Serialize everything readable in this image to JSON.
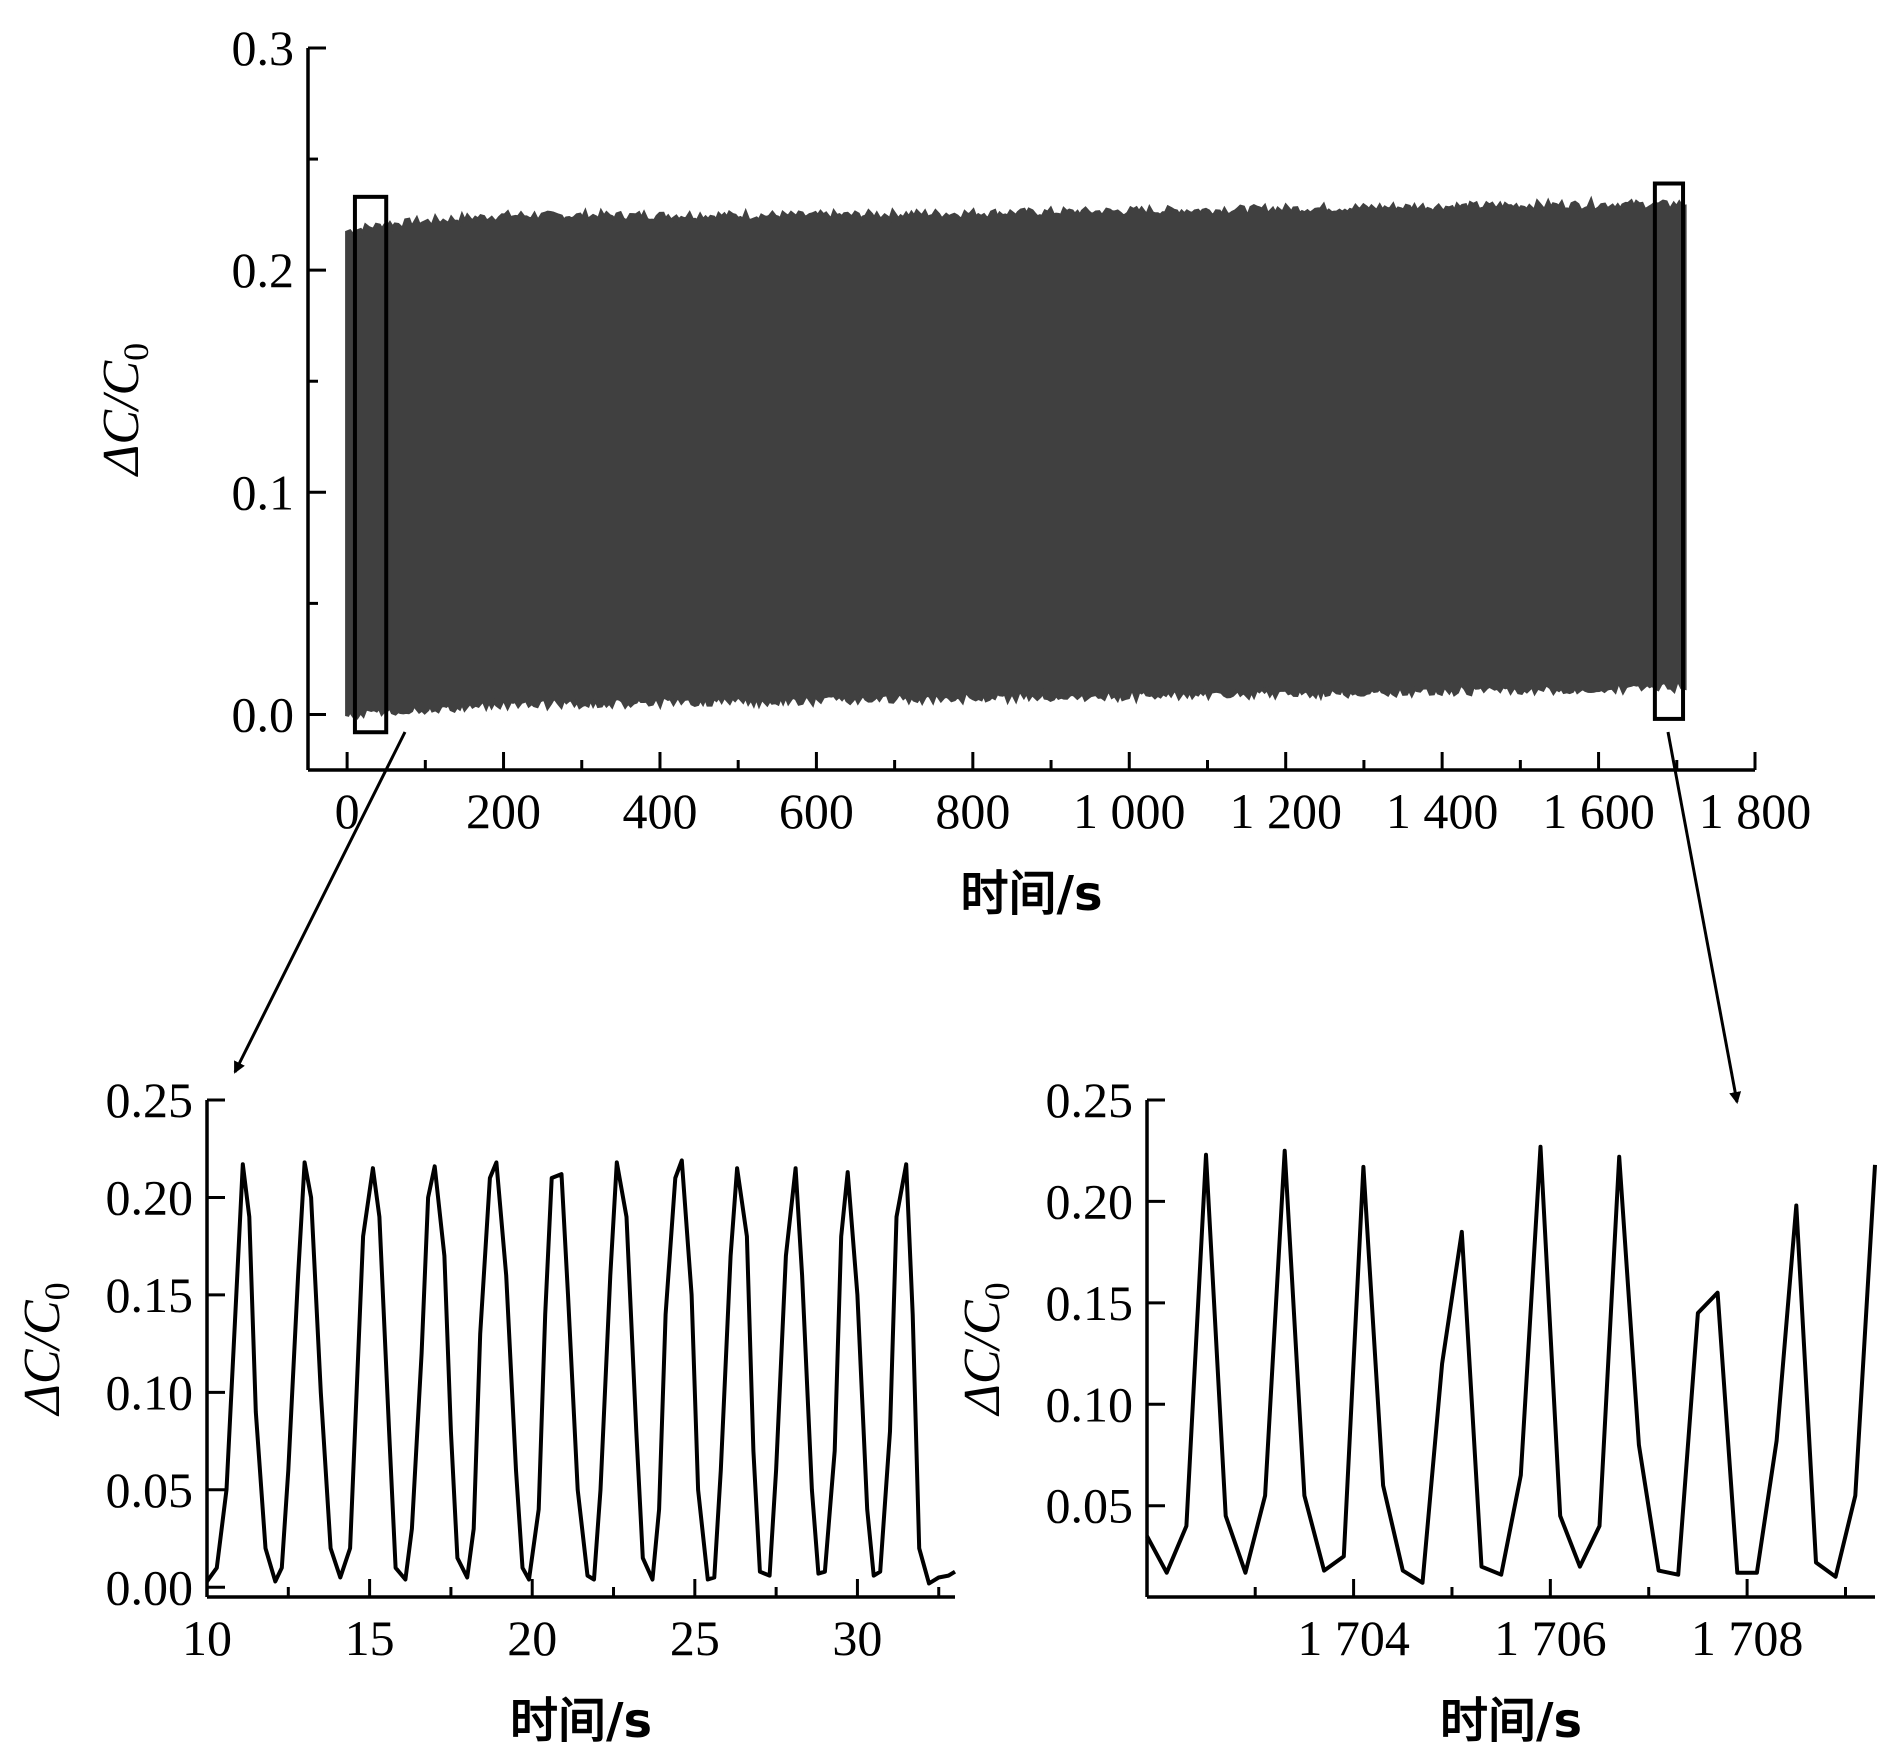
{
  "chart_data": [
    {
      "type": "line",
      "title": "",
      "xlabel": "时间/s",
      "ylabel_main": "ΔC/C",
      "ylabel_sub": "0",
      "xlim": [
        -50,
        1800
      ],
      "ylim": [
        -0.025,
        0.3
      ],
      "x_ticks": [
        0,
        200,
        400,
        600,
        800,
        1000,
        1200,
        1400,
        1600,
        1800
      ],
      "x_tick_labels": [
        "0",
        "200",
        "400",
        "600",
        "800",
        "1 000",
        "1 200",
        "1 400",
        "1 600",
        "1 800"
      ],
      "y_ticks": [
        0.0,
        0.1,
        0.2,
        0.3
      ],
      "y_tick_labels": [
        "0.0",
        "0.1",
        "0.2",
        "0.3"
      ],
      "series": [
        {
          "color": "#404040",
          "x_range": [
            0,
            1710
          ],
          "upper_envelope": [
            [
              0,
              0.217
            ],
            [
              50,
              0.22
            ],
            [
              200,
              0.224
            ],
            [
              400,
              0.224
            ],
            [
              600,
              0.224
            ],
            [
              800,
              0.225
            ],
            [
              1000,
              0.226
            ],
            [
              1200,
              0.227
            ],
            [
              1400,
              0.228
            ],
            [
              1600,
              0.229
            ],
            [
              1710,
              0.229
            ]
          ],
          "lower_envelope": [
            [
              0,
              0.0
            ],
            [
              50,
              0.002
            ],
            [
              200,
              0.005
            ],
            [
              400,
              0.006
            ],
            [
              600,
              0.007
            ],
            [
              800,
              0.008
            ],
            [
              1000,
              0.009
            ],
            [
              1200,
              0.01
            ],
            [
              1400,
              0.011
            ],
            [
              1600,
              0.012
            ],
            [
              1710,
              0.013
            ]
          ]
        }
      ],
      "highlight_boxes": [
        {
          "x_range": [
            10,
            50
          ],
          "y_range": [
            -0.008,
            0.233
          ]
        },
        {
          "x_range": [
            1672,
            1708
          ],
          "y_range": [
            -0.002,
            0.239
          ]
        }
      ]
    },
    {
      "type": "line",
      "title": "",
      "xlabel": "时间/s",
      "ylabel_main": "ΔC/C",
      "ylabel_sub": "0",
      "xlim": [
        10,
        33
      ],
      "ylim": [
        -0.005,
        0.25
      ],
      "x_ticks": [
        10,
        15,
        20,
        25,
        30
      ],
      "x_tick_labels": [
        "10",
        "15",
        "20",
        "25",
        "30"
      ],
      "y_ticks": [
        0.0,
        0.05,
        0.1,
        0.15,
        0.2,
        0.25
      ],
      "y_tick_labels": [
        "0.00",
        "0.05",
        "0.10",
        "0.15",
        "0.20",
        "0.25"
      ],
      "series": [
        {
          "color": "#000000",
          "x": [
            10.0,
            10.3,
            10.6,
            10.9,
            11.1,
            11.3,
            11.5,
            11.8,
            12.1,
            12.3,
            12.5,
            12.8,
            13.0,
            13.2,
            13.5,
            13.8,
            14.1,
            14.4,
            14.6,
            14.8,
            15.1,
            15.3,
            15.6,
            15.8,
            16.1,
            16.3,
            16.6,
            16.8,
            17.0,
            17.3,
            17.5,
            17.7,
            18.0,
            18.2,
            18.4,
            18.7,
            18.9,
            19.2,
            19.5,
            19.7,
            19.9,
            20.2,
            20.4,
            20.6,
            20.9,
            21.1,
            21.4,
            21.7,
            21.9,
            22.1,
            22.4,
            22.6,
            22.9,
            23.2,
            23.4,
            23.7,
            23.9,
            24.1,
            24.4,
            24.6,
            24.9,
            25.1,
            25.4,
            25.6,
            25.8,
            26.1,
            26.3,
            26.6,
            26.8,
            27.0,
            27.3,
            27.5,
            27.8,
            28.1,
            28.3,
            28.6,
            28.8,
            29.0,
            29.3,
            29.5,
            29.7,
            30.0,
            30.3,
            30.5,
            30.7,
            31.0,
            31.2,
            31.5,
            31.7,
            31.9,
            32.2,
            32.5,
            32.8,
            33.0
          ],
          "y": [
            0.003,
            0.01,
            0.05,
            0.15,
            0.217,
            0.19,
            0.09,
            0.02,
            0.003,
            0.01,
            0.06,
            0.16,
            0.218,
            0.2,
            0.1,
            0.02,
            0.005,
            0.02,
            0.1,
            0.18,
            0.215,
            0.19,
            0.08,
            0.01,
            0.004,
            0.03,
            0.12,
            0.2,
            0.216,
            0.17,
            0.08,
            0.015,
            0.005,
            0.03,
            0.13,
            0.21,
            0.218,
            0.16,
            0.06,
            0.01,
            0.004,
            0.04,
            0.14,
            0.21,
            0.212,
            0.15,
            0.05,
            0.006,
            0.004,
            0.05,
            0.16,
            0.218,
            0.19,
            0.08,
            0.015,
            0.004,
            0.04,
            0.14,
            0.21,
            0.219,
            0.15,
            0.05,
            0.004,
            0.005,
            0.06,
            0.17,
            0.215,
            0.18,
            0.07,
            0.008,
            0.006,
            0.06,
            0.17,
            0.215,
            0.16,
            0.05,
            0.007,
            0.008,
            0.07,
            0.18,
            0.213,
            0.15,
            0.04,
            0.006,
            0.008,
            0.08,
            0.19,
            0.217,
            0.14,
            0.02,
            0.002,
            0.005,
            0.006,
            0.008
          ]
        }
      ]
    },
    {
      "type": "line",
      "title": "",
      "xlabel": "时间/s",
      "ylabel_main": "ΔC/C",
      "ylabel_sub": "0",
      "xlim": [
        1701.9,
        1709.3
      ],
      "ylim": [
        0.005,
        0.25
      ],
      "x_ticks": [
        1704,
        1706,
        1708
      ],
      "x_tick_labels": [
        "1 704",
        "1 706",
        "1 708"
      ],
      "y_ticks": [
        0.05,
        0.1,
        0.15,
        0.2,
        0.25
      ],
      "y_tick_labels": [
        "0.05",
        "0.10",
        "0.15",
        "0.20",
        "0.25"
      ],
      "series": [
        {
          "color": "#000000",
          "x": [
            1701.9,
            1702.1,
            1702.3,
            1702.5,
            1702.7,
            1702.9,
            1703.1,
            1703.3,
            1703.5,
            1703.7,
            1703.9,
            1704.1,
            1704.3,
            1704.5,
            1704.7,
            1704.9,
            1705.1,
            1705.3,
            1705.5,
            1705.7,
            1705.9,
            1706.1,
            1706.3,
            1706.5,
            1706.7,
            1706.9,
            1707.1,
            1707.3,
            1707.5,
            1707.7,
            1707.9,
            1708.1,
            1708.3,
            1708.5,
            1708.7,
            1708.9,
            1709.1,
            1709.3
          ],
          "y": [
            0.035,
            0.017,
            0.04,
            0.223,
            0.045,
            0.017,
            0.055,
            0.225,
            0.055,
            0.018,
            0.025,
            0.217,
            0.06,
            0.018,
            0.012,
            0.12,
            0.185,
            0.02,
            0.016,
            0.065,
            0.227,
            0.045,
            0.02,
            0.04,
            0.222,
            0.08,
            0.018,
            0.016,
            0.145,
            0.155,
            0.017,
            0.017,
            0.082,
            0.198,
            0.022,
            0.015,
            0.055,
            0.218
          ]
        }
      ]
    }
  ]
}
